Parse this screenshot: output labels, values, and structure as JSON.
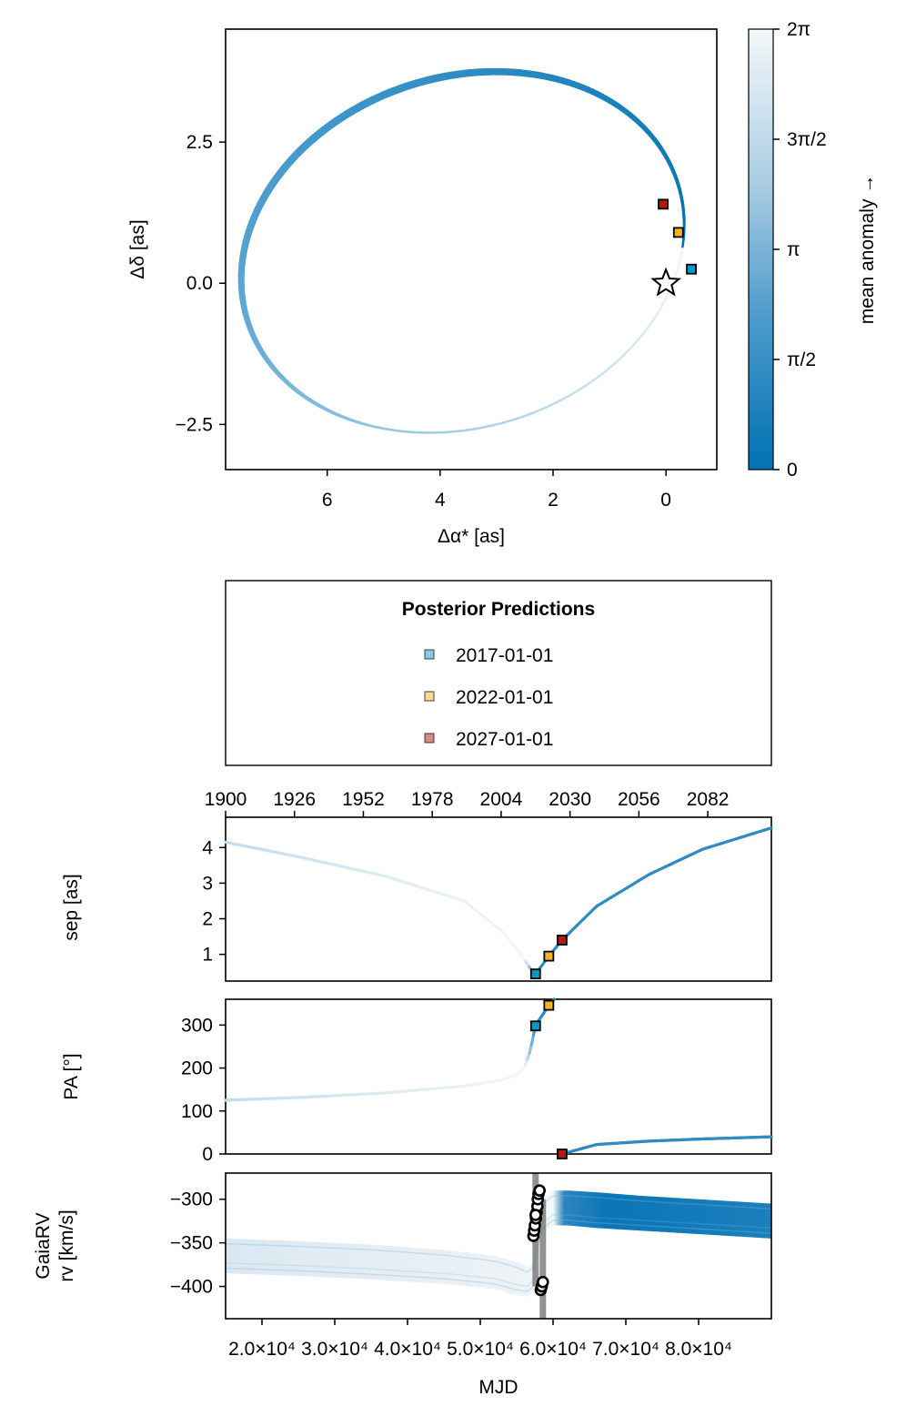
{
  "chart_data": [
    {
      "type": "scatter",
      "name": "sky-plane orbit",
      "xlabel": "Δα* [as]",
      "ylabel": "Δδ [as]",
      "xlim": [
        7.8,
        -0.9
      ],
      "ylim": [
        -3.3,
        4.5
      ],
      "x_ticks": [
        {
          "v": 6,
          "label": "6"
        },
        {
          "v": 4,
          "label": "4"
        },
        {
          "v": 2,
          "label": "2"
        },
        {
          "v": 0,
          "label": "0"
        }
      ],
      "y_ticks": [
        {
          "v": 2.5,
          "label": "2.5"
        },
        {
          "v": 0,
          "label": "0.0"
        },
        {
          "v": -2.5,
          "label": "−2.5"
        }
      ],
      "orbit": {
        "center_x": 3.6,
        "center_y": 0.55,
        "semi_x": 4.0,
        "semi_y": 3.1,
        "tilt_deg": 18
      },
      "star": {
        "x": 0.0,
        "y": 0.0
      },
      "markers": [
        {
          "epoch": "2017-01-01",
          "x": -0.45,
          "y": 0.25,
          "color": "#0099c6"
        },
        {
          "epoch": "2022-01-01",
          "x": -0.22,
          "y": 0.9,
          "color": "#f0b323"
        },
        {
          "epoch": "2027-01-01",
          "x": 0.05,
          "y": 1.4,
          "color": "#b3190f"
        }
      ]
    },
    {
      "type": "colorbar",
      "label": "mean anomaly →",
      "range": [
        0,
        6.283
      ],
      "ticks": [
        {
          "v": 0,
          "label": "0"
        },
        {
          "v": 1.571,
          "label": "π/2"
        },
        {
          "v": 3.142,
          "label": "π"
        },
        {
          "v": 4.712,
          "label": "3π/2"
        },
        {
          "v": 6.283,
          "label": "2π"
        }
      ],
      "colors": {
        "low": "#0072b2",
        "high": "#f5f8fa"
      }
    },
    {
      "type": "legend",
      "title": "Posterior Predictions",
      "entries": [
        {
          "label": "2017-01-01",
          "color": "#0099c6"
        },
        {
          "label": "2022-01-01",
          "color": "#f0b323"
        },
        {
          "label": "2027-01-01",
          "color": "#b3190f"
        }
      ]
    },
    {
      "type": "line",
      "name": "separation vs time",
      "ylabel": "sep [as]",
      "xlim": [
        1900,
        2106
      ],
      "ylim": [
        0.25,
        4.85
      ],
      "top_x_ticks": [
        {
          "v": 1900,
          "label": "1900"
        },
        {
          "v": 1926,
          "label": "1926"
        },
        {
          "v": 1952,
          "label": "1952"
        },
        {
          "v": 1978,
          "label": "1978"
        },
        {
          "v": 2004,
          "label": "2004"
        },
        {
          "v": 2030,
          "label": "2030"
        },
        {
          "v": 2056,
          "label": "2056"
        },
        {
          "v": 2082,
          "label": "2082"
        }
      ],
      "y_ticks": [
        {
          "v": 1,
          "label": "1"
        },
        {
          "v": 2,
          "label": "2"
        },
        {
          "v": 3,
          "label": "3"
        },
        {
          "v": 4,
          "label": "4"
        }
      ],
      "series": [
        {
          "name": "sep",
          "x": [
            1900,
            1930,
            1960,
            1990,
            2005,
            2012,
            2015,
            2017,
            2022,
            2027,
            2040,
            2060,
            2080,
            2106
          ],
          "y": [
            4.15,
            3.7,
            3.2,
            2.5,
            1.6,
            0.95,
            0.6,
            0.45,
            0.95,
            1.4,
            2.35,
            3.25,
            3.95,
            4.55
          ]
        }
      ],
      "markers": [
        {
          "epoch": "2017-01-01",
          "x": 2017,
          "y": 0.45,
          "color": "#0099c6"
        },
        {
          "epoch": "2022-01-01",
          "x": 2022,
          "y": 0.95,
          "color": "#f0b323"
        },
        {
          "epoch": "2027-01-01",
          "x": 2027,
          "y": 1.4,
          "color": "#b3190f"
        }
      ]
    },
    {
      "type": "line",
      "name": "position angle vs time",
      "ylabel": "PA [°]",
      "xlim": [
        1900,
        2106
      ],
      "ylim": [
        0,
        360
      ],
      "y_ticks": [
        {
          "v": 0,
          "label": "0"
        },
        {
          "v": 100,
          "label": "100"
        },
        {
          "v": 200,
          "label": "200"
        },
        {
          "v": 300,
          "label": "300"
        }
      ],
      "series": [
        {
          "name": "pa-early",
          "x": [
            1900,
            1930,
            1960,
            1990,
            2004,
            2010,
            2013,
            2015,
            2017,
            2022,
            2024
          ],
          "y": [
            125,
            132,
            142,
            158,
            172,
            185,
            205,
            240,
            300,
            345,
            360
          ]
        },
        {
          "name": "pa-late",
          "x": [
            2027,
            2040,
            2060,
            2080,
            2106
          ],
          "y": [
            0,
            22,
            30,
            35,
            40
          ]
        }
      ],
      "markers": [
        {
          "epoch": "2017-01-01",
          "x": 2017,
          "y": 298,
          "color": "#0099c6"
        },
        {
          "epoch": "2022-01-01",
          "x": 2022,
          "y": 346,
          "color": "#f0b323"
        },
        {
          "epoch": "2027-01-01",
          "x": 2027,
          "y": 0,
          "color": "#b3190f"
        }
      ]
    },
    {
      "type": "line",
      "name": "Gaia radial velocity vs MJD",
      "ylabel": [
        "GaiaRV",
        "rv [km/s]"
      ],
      "xlabel": "MJD",
      "xlim": [
        15000,
        90000
      ],
      "ylim": [
        -437,
        -270
      ],
      "x_ticks": [
        {
          "v": 20000,
          "label": "2.0×10⁴"
        },
        {
          "v": 30000,
          "label": "3.0×10⁴"
        },
        {
          "v": 40000,
          "label": "4.0×10⁴"
        },
        {
          "v": 50000,
          "label": "5.0×10⁴"
        },
        {
          "v": 60000,
          "label": "6.0×10⁴"
        },
        {
          "v": 70000,
          "label": "7.0×10⁴"
        },
        {
          "v": 80000,
          "label": "8.0×10⁴"
        }
      ],
      "y_ticks": [
        {
          "v": -300,
          "label": "−300"
        },
        {
          "v": -350,
          "label": "−350"
        },
        {
          "v": -400,
          "label": "−400"
        }
      ],
      "band": {
        "x": [
          15000,
          25000,
          35000,
          45000,
          52000,
          55000,
          56500,
          57300,
          57700,
          58500,
          60000,
          62000,
          66000,
          72000,
          80000,
          90000
        ],
        "upper": [
          -345,
          -348,
          -352,
          -358,
          -365,
          -372,
          -378,
          -372,
          -330,
          -300,
          -290,
          -290,
          -292,
          -296,
          -300,
          -305
        ],
        "lower": [
          -385,
          -388,
          -392,
          -397,
          -403,
          -410,
          -412,
          -405,
          -365,
          -340,
          -330,
          -330,
          -333,
          -336,
          -340,
          -345
        ]
      },
      "gray_band": [
        {
          "x": 57600,
          "y0": -400,
          "y1": -268
        },
        {
          "x": 58600,
          "y0": -437,
          "y1": -300
        }
      ],
      "observations": [
        {
          "x": 57300,
          "y": -342
        },
        {
          "x": 57400,
          "y": -336
        },
        {
          "x": 57500,
          "y": -330
        },
        {
          "x": 57650,
          "y": -322
        },
        {
          "x": 57750,
          "y": -315
        },
        {
          "x": 57850,
          "y": -308
        },
        {
          "x": 57900,
          "y": -300
        },
        {
          "x": 58000,
          "y": -294
        },
        {
          "x": 58150,
          "y": -290
        },
        {
          "x": 57600,
          "y": -318
        },
        {
          "x": 58300,
          "y": -404
        },
        {
          "x": 58450,
          "y": -400
        },
        {
          "x": 58600,
          "y": -395
        }
      ]
    }
  ]
}
